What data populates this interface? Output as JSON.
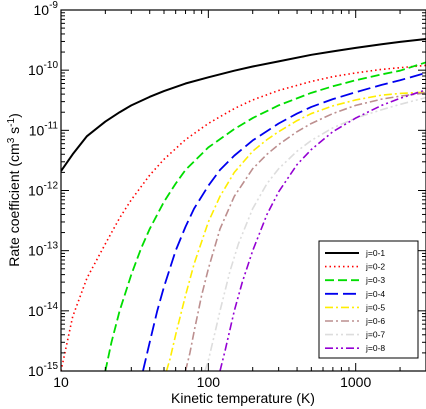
{
  "chart_data": {
    "type": "line",
    "title": "",
    "xlabel": "Kinetic temperature (K)",
    "ylabel_main": "Rate coefficient (cm",
    "ylabel_sup1": "3",
    "ylabel_mid": " s",
    "ylabel_sup2": "-1",
    "ylabel_end": ")",
    "xscale": "log",
    "yscale": "log",
    "xlim": [
      10,
      3000
    ],
    "ylim": [
      1e-15,
      1e-09
    ],
    "x_ticks": [
      {
        "value": 10,
        "label": "10"
      },
      {
        "value": 100,
        "label": "100"
      },
      {
        "value": 1000,
        "label": "1000"
      }
    ],
    "y_ticks": [
      {
        "value": 1e-15,
        "base": "10",
        "exp": "-15"
      },
      {
        "value": 1e-14,
        "base": "10",
        "exp": "-14"
      },
      {
        "value": 1e-13,
        "base": "10",
        "exp": "-13"
      },
      {
        "value": 1e-12,
        "base": "10",
        "exp": "-12"
      },
      {
        "value": 1e-11,
        "base": "10",
        "exp": "-11"
      },
      {
        "value": 1e-10,
        "base": "10",
        "exp": "-10"
      },
      {
        "value": 1e-09,
        "base": "10",
        "exp": "-9"
      }
    ],
    "grid": false,
    "legend_position": "bottom-right",
    "series": [
      {
        "name": "j=0-1",
        "color": "#000000",
        "dash": "",
        "width": 2,
        "x": [
          10,
          12,
          15,
          20,
          25,
          30,
          40,
          50,
          70,
          100,
          150,
          200,
          300,
          500,
          700,
          1000,
          1500,
          2000,
          3000
        ],
        "y": [
          2.1e-12,
          4e-12,
          8e-12,
          1.4e-11,
          2e-11,
          2.6e-11,
          3.6e-11,
          4.5e-11,
          6e-11,
          7.6e-11,
          9.8e-11,
          1.15e-10,
          1.4e-10,
          1.8e-10,
          2.05e-10,
          2.35e-10,
          2.7e-10,
          2.95e-10,
          3.3e-10
        ]
      },
      {
        "name": "j=0-2",
        "color": "#ff0000",
        "dash": "1.5,3",
        "width": 1.6,
        "x": [
          10,
          12,
          15,
          20,
          25,
          30,
          40,
          50,
          70,
          100,
          150,
          200,
          300,
          500,
          700,
          1000,
          1500,
          2000,
          3000
        ],
        "y": [
          1e-15,
          8e-15,
          3.5e-14,
          1.3e-13,
          3.5e-13,
          7e-13,
          1.8e-12,
          3.3e-12,
          7e-12,
          1.3e-11,
          2.3e-11,
          3.2e-11,
          4.6e-11,
          6.5e-11,
          7.8e-11,
          9e-11,
          1.03e-10,
          1.1e-10,
          1.2e-10
        ]
      },
      {
        "name": "j=0-3",
        "color": "#00dd00",
        "dash": "9,4",
        "width": 1.8,
        "x": [
          20,
          22,
          25,
          30,
          35,
          40,
          50,
          60,
          70,
          100,
          150,
          200,
          300,
          500,
          700,
          1000,
          1500,
          2000,
          3000
        ],
        "y": [
          1e-15,
          3e-15,
          1e-14,
          4e-14,
          1.1e-13,
          2.3e-13,
          6.5e-13,
          1.3e-12,
          2.2e-12,
          5.2e-12,
          1.05e-11,
          1.6e-11,
          2.6e-11,
          4.2e-11,
          5.4e-11,
          6.8e-11,
          8.5e-11,
          9.8e-11,
          1.35e-10
        ]
      },
      {
        "name": "j=0-4",
        "color": "#0000ee",
        "dash": "13,5",
        "width": 1.8,
        "x": [
          36,
          40,
          45,
          50,
          60,
          70,
          80,
          100,
          120,
          150,
          200,
          300,
          400,
          500,
          700,
          1000,
          1500,
          2000,
          3000
        ],
        "y": [
          1e-15,
          3e-15,
          1e-14,
          2.5e-14,
          1e-13,
          2.5e-13,
          5e-13,
          1.2e-12,
          2.2e-12,
          3.8e-12,
          6.8e-12,
          1.3e-11,
          1.9e-11,
          2.45e-11,
          3.3e-11,
          4.3e-11,
          5.7e-11,
          6.8e-11,
          9e-11
        ]
      },
      {
        "name": "j=0-5",
        "color": "#ffee00",
        "dash": "8,3,2,3",
        "width": 1.6,
        "x": [
          52,
          55,
          60,
          70,
          80,
          100,
          120,
          150,
          200,
          250,
          300,
          400,
          500,
          700,
          1000,
          1500,
          2000,
          3000
        ],
        "y": [
          1e-15,
          1.6e-15,
          4e-15,
          1.8e-14,
          6e-14,
          3e-13,
          8e-13,
          2e-12,
          4.5e-12,
          7e-12,
          9.5e-12,
          1.45e-11,
          1.9e-11,
          2.55e-11,
          3.2e-11,
          3.85e-11,
          4.1e-11,
          4.3e-11
        ]
      },
      {
        "name": "j=0-6",
        "color": "#bc8f8f",
        "dash": "8,3,2,3",
        "width": 1.6,
        "x": [
          70,
          75,
          80,
          90,
          100,
          120,
          150,
          200,
          250,
          300,
          400,
          500,
          700,
          1000,
          1500,
          2000,
          3000
        ],
        "y": [
          1e-15,
          2e-15,
          4.5e-15,
          1.8e-14,
          5e-14,
          2.3e-13,
          8e-13,
          2.3e-12,
          4e-12,
          5.8e-12,
          9.5e-12,
          1.3e-11,
          1.9e-11,
          2.6e-11,
          3.3e-11,
          3.7e-11,
          4.2e-11
        ]
      },
      {
        "name": "j=0-7",
        "color": "#dddddd",
        "dash": "8,3,2,3,2,3",
        "width": 1.6,
        "x": [
          95,
          100,
          110,
          120,
          140,
          160,
          200,
          250,
          300,
          400,
          500,
          700,
          1000,
          1500,
          2000,
          3000
        ],
        "y": [
          1e-15,
          1.5e-15,
          4e-15,
          1e-14,
          4.5e-14,
          1.3e-13,
          5e-13,
          1.3e-12,
          2.3e-12,
          4.5e-12,
          6.8e-12,
          1.1e-11,
          1.6e-11,
          2.2e-11,
          2.7e-11,
          3.5e-11
        ]
      },
      {
        "name": "j=0-8",
        "color": "#9400d3",
        "dash": "8,3,2,3,2,3",
        "width": 1.6,
        "x": [
          120,
          130,
          150,
          170,
          200,
          250,
          300,
          400,
          500,
          700,
          1000,
          1500,
          2000,
          3000
        ],
        "y": [
          1e-15,
          2.2e-15,
          1e-14,
          3e-14,
          1e-13,
          4e-13,
          9.5e-13,
          2.7e-12,
          4.8e-12,
          9.5e-12,
          1.6e-11,
          2.6e-11,
          3.4e-11,
          4.7e-11
        ]
      }
    ]
  }
}
